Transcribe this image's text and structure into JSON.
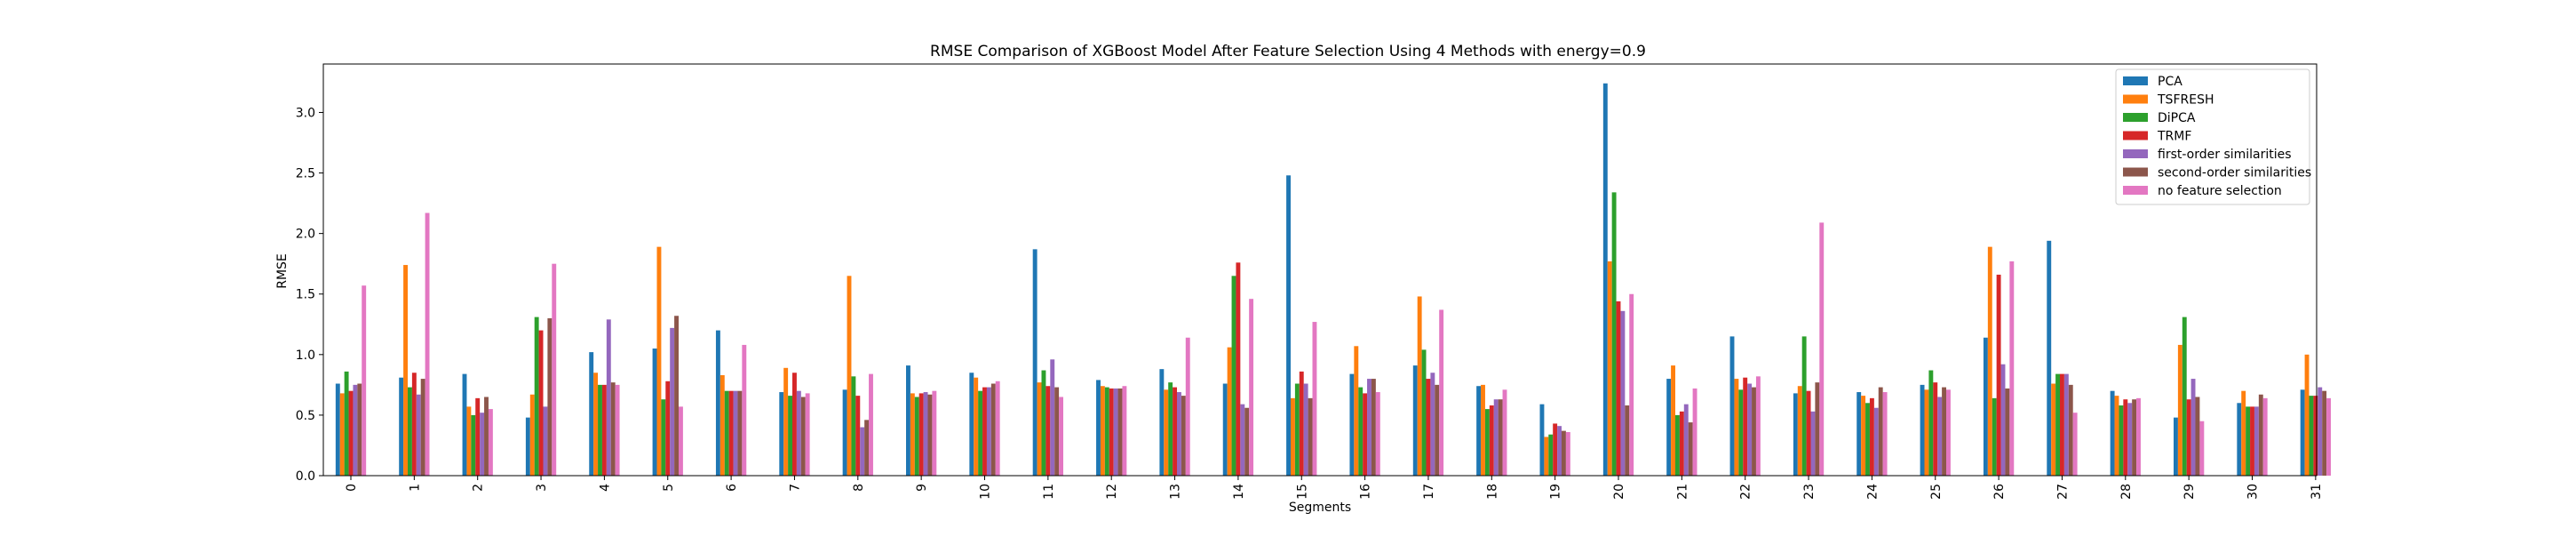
{
  "chart_data": {
    "type": "bar",
    "title": "RMSE Comparison of XGBoost Model After Feature Selection Using 4 Methods with energy=0.9",
    "xlabel": "Segments",
    "ylabel": "RMSE",
    "ylim": [
      0,
      3.4
    ],
    "yticks": [
      "0.0",
      "0.5",
      "1.0",
      "1.5",
      "2.0",
      "2.5",
      "3.0"
    ],
    "legend_position": "top-right",
    "grid": false,
    "categories": [
      "0",
      "1",
      "2",
      "3",
      "4",
      "5",
      "6",
      "7",
      "8",
      "9",
      "10",
      "11",
      "12",
      "13",
      "14",
      "15",
      "16",
      "17",
      "18",
      "19",
      "20",
      "21",
      "22",
      "23",
      "24",
      "25",
      "26",
      "27",
      "28",
      "29",
      "30",
      "31"
    ],
    "series": [
      {
        "name": "PCA",
        "color": "#1f77b4",
        "values": [
          0.76,
          0.81,
          0.84,
          0.48,
          1.02,
          1.05,
          1.2,
          0.69,
          0.71,
          0.91,
          0.85,
          1.87,
          0.79,
          0.88,
          0.76,
          2.48,
          0.84,
          0.91,
          0.74,
          0.59,
          3.24,
          0.8,
          1.15,
          0.68,
          0.69,
          0.75,
          1.14,
          1.94,
          0.7,
          0.48,
          0.6,
          0.71
        ]
      },
      {
        "name": "TSFRESH",
        "color": "#ff7f0e",
        "values": [
          0.68,
          1.74,
          0.57,
          0.67,
          0.85,
          1.89,
          0.83,
          0.89,
          1.65,
          0.68,
          0.81,
          0.77,
          0.74,
          0.71,
          1.06,
          0.64,
          1.07,
          1.48,
          0.75,
          0.32,
          1.77,
          0.91,
          0.8,
          0.74,
          0.66,
          0.71,
          1.89,
          0.76,
          0.66,
          1.08,
          0.7,
          1.0
        ]
      },
      {
        "name": "DiPCA",
        "color": "#2ca02c",
        "values": [
          0.86,
          0.73,
          0.5,
          1.31,
          0.75,
          0.63,
          0.7,
          0.66,
          0.82,
          0.65,
          0.7,
          0.87,
          0.73,
          0.77,
          1.65,
          0.76,
          0.73,
          1.04,
          0.55,
          0.34,
          2.34,
          0.5,
          0.71,
          1.15,
          0.6,
          0.87,
          0.64,
          0.84,
          0.58,
          1.31,
          0.57,
          0.66
        ]
      },
      {
        "name": "TRMF",
        "color": "#d62728",
        "values": [
          0.7,
          0.85,
          0.64,
          1.2,
          0.75,
          0.78,
          0.7,
          0.85,
          0.66,
          0.68,
          0.73,
          0.74,
          0.72,
          0.73,
          1.76,
          0.86,
          0.68,
          0.8,
          0.58,
          0.43,
          1.44,
          0.53,
          0.81,
          0.7,
          0.64,
          0.77,
          1.66,
          0.84,
          0.63,
          0.63,
          0.57,
          0.66
        ]
      },
      {
        "name": "first-order similarities",
        "color": "#9467bd",
        "values": [
          0.75,
          0.67,
          0.52,
          0.57,
          1.29,
          1.22,
          0.7,
          0.7,
          0.4,
          0.69,
          0.73,
          0.96,
          0.72,
          0.69,
          0.59,
          0.76,
          0.8,
          0.85,
          0.63,
          0.41,
          1.36,
          0.59,
          0.76,
          0.53,
          0.56,
          0.65,
          0.92,
          0.84,
          0.6,
          0.8,
          0.57,
          0.73
        ]
      },
      {
        "name": "second-order similarities",
        "color": "#8c564b",
        "values": [
          0.76,
          0.8,
          0.65,
          1.3,
          0.77,
          1.32,
          0.7,
          0.65,
          0.46,
          0.67,
          0.76,
          0.73,
          0.72,
          0.66,
          0.56,
          0.64,
          0.8,
          0.75,
          0.63,
          0.37,
          0.58,
          0.44,
          0.73,
          0.77,
          0.73,
          0.73,
          0.72,
          0.75,
          0.63,
          0.65,
          0.67,
          0.7
        ]
      },
      {
        "name": "no feature selection",
        "color": "#e377c2",
        "values": [
          1.57,
          2.17,
          0.55,
          1.75,
          0.75,
          0.57,
          1.08,
          0.68,
          0.84,
          0.7,
          0.78,
          0.65,
          0.74,
          1.14,
          1.46,
          1.27,
          0.69,
          1.37,
          0.71,
          0.36,
          1.5,
          0.72,
          0.82,
          2.09,
          0.69,
          0.71,
          1.77,
          0.52,
          0.64,
          0.45,
          0.64,
          0.64
        ]
      }
    ]
  }
}
